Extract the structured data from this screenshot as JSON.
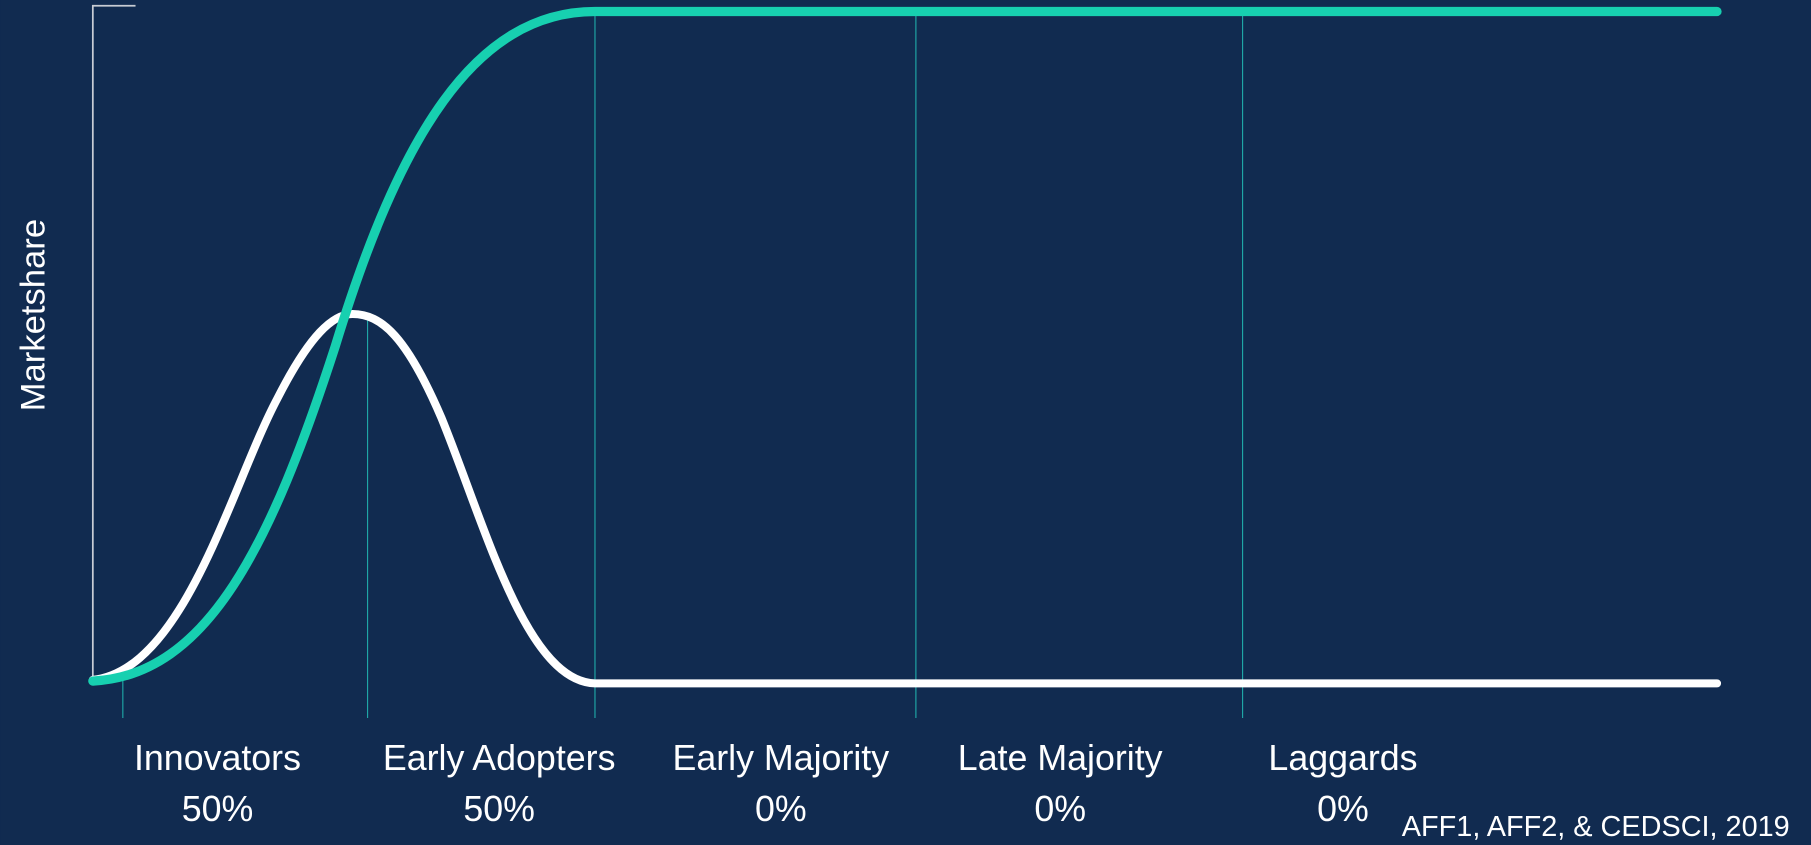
{
  "axis_label": "Marketshare",
  "segments": [
    {
      "label": "Innovators",
      "share": "50%"
    },
    {
      "label": "Early Adopters",
      "share": "50%"
    },
    {
      "label": "Early Majority",
      "share": "0%"
    },
    {
      "label": "Late Majority",
      "share": "0%"
    },
    {
      "label": "Laggards",
      "share": "0%"
    }
  ],
  "source": "AFF1, AFF2, & CEDSCI, 2019"
}
